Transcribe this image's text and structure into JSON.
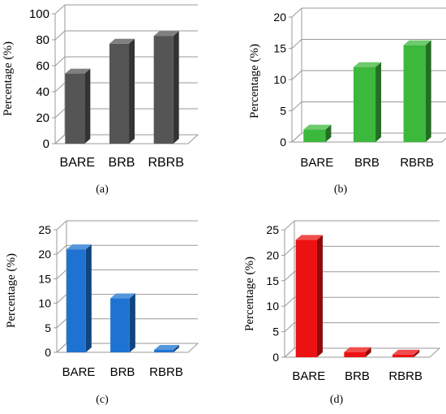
{
  "chart_data": [
    {
      "type": "bar",
      "caption": "(a)",
      "categories": [
        "BARE",
        "BRB",
        "RBRB"
      ],
      "values": [
        54,
        77,
        83
      ],
      "ylabel": "Percentage (%)",
      "ylim": [
        0,
        100
      ],
      "yticks": [
        0,
        20,
        40,
        60,
        80,
        100
      ],
      "grid": true,
      "color": "#555555"
    },
    {
      "type": "bar",
      "caption": "(b)",
      "categories": [
        "BARE",
        "BRB",
        "RBRB"
      ],
      "values": [
        2,
        12,
        15.5
      ],
      "ylabel": "Percentage (%)",
      "ylim": [
        0,
        20
      ],
      "yticks": [
        0,
        5,
        10,
        15,
        20
      ],
      "grid": true,
      "color": "#3cb83c"
    },
    {
      "type": "bar",
      "caption": "(c)",
      "categories": [
        "BARE",
        "BRB",
        "RBRB"
      ],
      "values": [
        21,
        11,
        0.5
      ],
      "ylabel": "Percentage (%)",
      "ylim": [
        0,
        25
      ],
      "yticks": [
        0,
        5,
        10,
        15,
        20,
        25
      ],
      "grid": true,
      "color": "#1e73d2"
    },
    {
      "type": "bar",
      "caption": "(d)",
      "categories": [
        "BARE",
        "BRB",
        "RBRB"
      ],
      "values": [
        23,
        1,
        0.5
      ],
      "ylabel": "Percentage (%)",
      "ylim": [
        0,
        25
      ],
      "yticks": [
        0,
        5,
        10,
        15,
        20,
        25
      ],
      "grid": true,
      "color": "#ee1111"
    }
  ]
}
